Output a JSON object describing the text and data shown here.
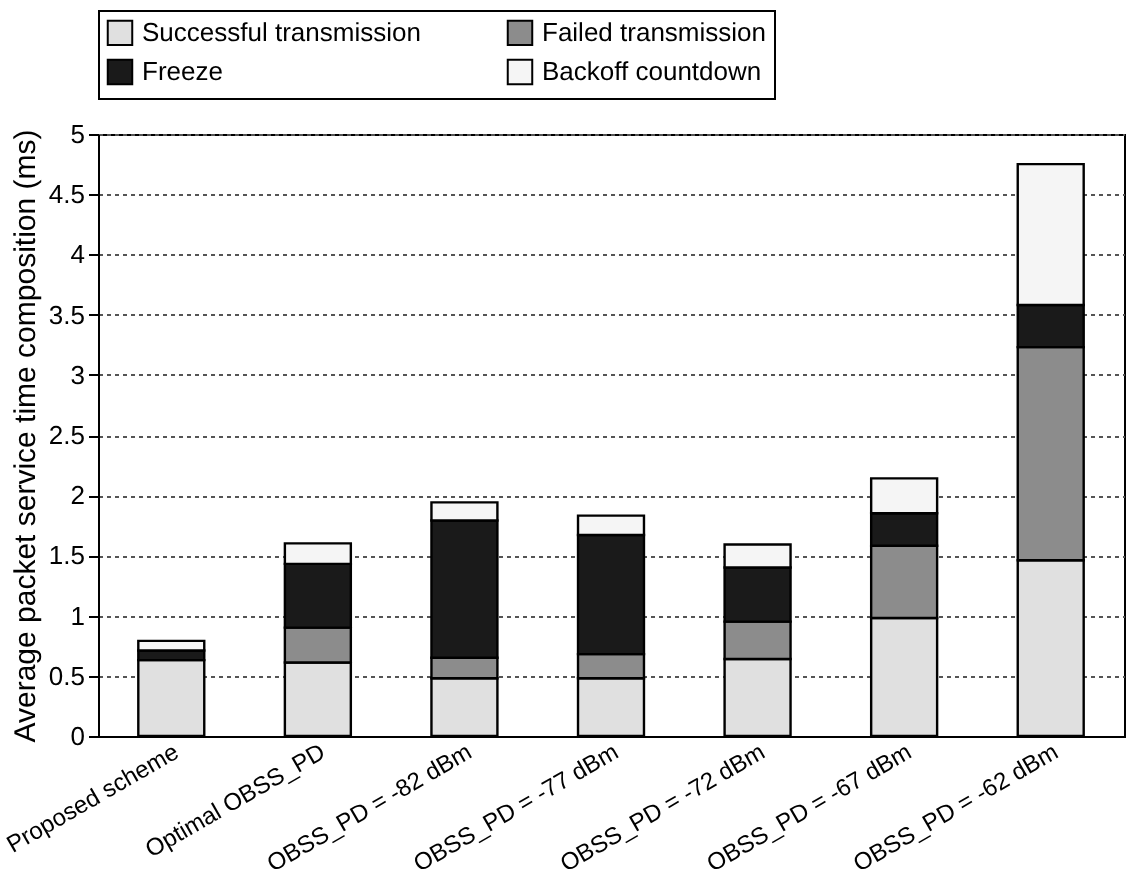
{
  "chart_data": {
    "type": "bar",
    "stacked": true,
    "ylabel": "Average packet service time composition (ms)",
    "categories": [
      "Proposed scheme",
      "Optimal OBSS_PD",
      "OBSS_PD = -82 dBm",
      "OBSS_PD = -77 dBm",
      "OBSS_PD = -72 dBm",
      "OBSS_PD = -67 dBm",
      "OBSS_PD = -62 dBm"
    ],
    "series": [
      {
        "name": "Successful transmission",
        "color": "#e0e0e0",
        "values": [
          0.63,
          0.61,
          0.48,
          0.48,
          0.64,
          0.98,
          1.46
        ]
      },
      {
        "name": "Failed transmission",
        "color": "#8c8c8c",
        "values": [
          null,
          0.29,
          0.17,
          0.2,
          0.31,
          0.6,
          1.77
        ]
      },
      {
        "name": "Freeze",
        "color": "#1a1a1a",
        "values": [
          0.08,
          0.53,
          1.14,
          0.99,
          0.45,
          0.27,
          0.35
        ]
      },
      {
        "name": "Backoff countdown",
        "color": "#f5f5f5",
        "values": [
          0.08,
          0.17,
          0.15,
          0.16,
          0.19,
          0.29,
          1.17
        ]
      }
    ],
    "ylim": [
      0,
      5
    ],
    "yticks": [
      0,
      0.5,
      1,
      1.5,
      2,
      2.5,
      3,
      3.5,
      4,
      4.5,
      5
    ],
    "grid": "y",
    "legend": "top"
  }
}
